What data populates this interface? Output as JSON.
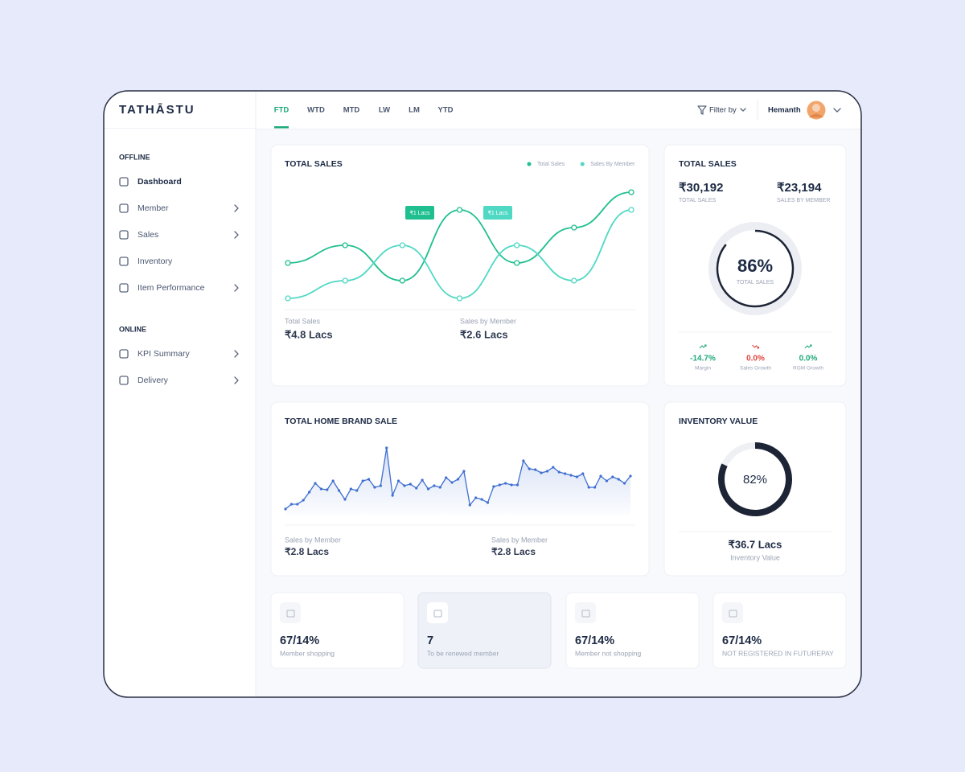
{
  "brand": "TATHĀSTU",
  "tabs": [
    "FTD",
    "WTD",
    "MTD",
    "LW",
    "LM",
    "YTD"
  ],
  "active_tab": 0,
  "filter": "Filter by",
  "user": "Hemanth",
  "sidebar": [
    {
      "title": "OFFLINE",
      "items": [
        {
          "label": "Dashboard",
          "active": true,
          "submenu": false
        },
        {
          "label": "Member",
          "active": false,
          "submenu": true
        },
        {
          "label": "Sales",
          "active": false,
          "submenu": true
        },
        {
          "label": "Inventory",
          "active": false,
          "submenu": false
        },
        {
          "label": "Item Performance",
          "active": false,
          "submenu": true
        }
      ]
    },
    {
      "title": "ONLINE",
      "items": [
        {
          "label": "KPI Summary",
          "active": false,
          "submenu": true
        },
        {
          "label": "Delivery",
          "active": false,
          "submenu": true
        }
      ]
    }
  ],
  "chart_data": [
    {
      "type": "line",
      "title": "TOTAL SALES",
      "categories": [
        null,
        null,
        null,
        null,
        null,
        null,
        null
      ],
      "series": [
        {
          "name": "Total Sales",
          "color": "#1fbf8f",
          "values": [
            3,
            4,
            2,
            6,
            3,
            5,
            7
          ]
        },
        {
          "name": "Sales By Member",
          "color": "#4fd8c4",
          "values": [
            1,
            2,
            4,
            1,
            4,
            2,
            6
          ]
        }
      ],
      "ylim": [
        0,
        8
      ],
      "annotations": [
        {
          "text": "₹1 Lacs",
          "color": "#1fbf8f"
        },
        {
          "text": "₹1 Lacs",
          "color": "#4fd8c4"
        }
      ],
      "summary": [
        {
          "label": "Total Sales",
          "value": "₹4.8 Lacs"
        },
        {
          "label": "Sales by Member",
          "value": "₹2.6 Lacs"
        }
      ]
    },
    {
      "type": "area",
      "title": "TOTAL HOME BRAND SALE",
      "color": "#3f6fd1",
      "categories": [
        null,
        null,
        null,
        null,
        null,
        null,
        null,
        null,
        null,
        null,
        null,
        null,
        null,
        null,
        null,
        null,
        null,
        null,
        null,
        null,
        null,
        null,
        null,
        null,
        null,
        null,
        null,
        null,
        null,
        null,
        null,
        null,
        null,
        null,
        null,
        null,
        null,
        null,
        null,
        null,
        null,
        null,
        null,
        null,
        null,
        null,
        null,
        null,
        null,
        null,
        null,
        null,
        null,
        null,
        null,
        null,
        null,
        null,
        null
      ],
      "values": [
        7,
        13,
        13,
        18,
        28,
        39,
        32,
        31,
        42,
        30,
        19,
        32,
        30,
        42,
        44,
        34,
        36,
        83,
        24,
        42,
        36,
        38,
        33,
        43,
        32,
        36,
        34,
        46,
        40,
        44,
        54,
        12,
        21,
        19,
        15,
        35,
        37,
        39,
        37,
        37,
        67,
        57,
        56,
        52,
        54,
        59,
        53,
        51,
        49,
        47,
        51,
        34,
        34,
        48,
        42,
        47,
        44,
        39,
        48
      ],
      "ylim": [
        0,
        100
      ],
      "summary": [
        {
          "label": "Sales by Member",
          "value": "₹2.8 Lacs"
        },
        {
          "label": "Sales by Member",
          "value": "₹2.8 Lacs"
        }
      ]
    },
    {
      "type": "donut",
      "title": "TOTAL SALES",
      "color": "#1c2436",
      "values": [
        86
      ],
      "value_labels": [
        "86%"
      ],
      "center_label": "TOTAL SALES",
      "totals": [
        {
          "value": "₹30,192",
          "label": "TOTAL SALES"
        },
        {
          "value": "₹23,194",
          "label": "SALES BY MEMBER"
        }
      ],
      "metrics": [
        {
          "value": "-14.7%",
          "label": "Margin",
          "color": "#1fa97a",
          "trend": "up"
        },
        {
          "value": "0.0%",
          "label": "Sales Growth",
          "color": "#e0443e",
          "trend": "down"
        },
        {
          "value": "0.0%",
          "label": "RGM Growth",
          "color": "#1fa97a",
          "trend": "up"
        }
      ]
    },
    {
      "type": "donut",
      "title": "INVENTORY VALUE",
      "color": "#1c2436",
      "values": [
        82
      ],
      "value_labels": [
        "82%"
      ],
      "totals": [
        {
          "value": "₹36.7 Lacs",
          "label": "Inventory Value"
        }
      ]
    }
  ],
  "stat_cards": [
    {
      "value": "67/14%",
      "label": "Member shopping",
      "highlight": false
    },
    {
      "value": "7",
      "label": "To be renewed member",
      "highlight": true
    },
    {
      "value": "67/14%",
      "label": "Member not shopping",
      "highlight": false
    },
    {
      "value": "67/14%",
      "label": "NOT REGISTERED IN FUTUREPAY",
      "highlight": false
    }
  ]
}
